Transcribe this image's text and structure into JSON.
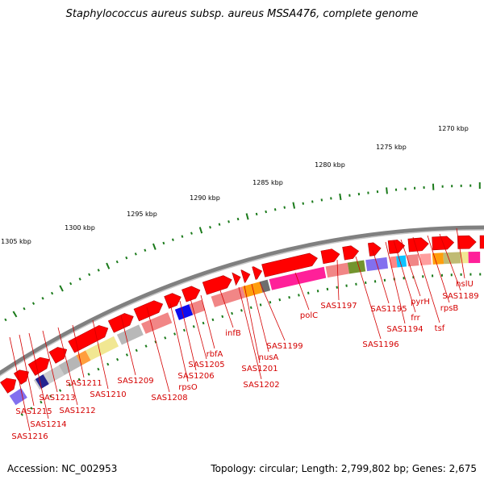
{
  "header": {
    "title": "Staphylococcus aureus subsp. aureus MSSA476, complete genome"
  },
  "footer": {
    "accession": "Accession: NC_002953",
    "summary": "Topology: circular; Length: 2,799,802 bp; Genes: 2,675"
  },
  "scale_labels": [
    "1270 kbp",
    "1275 kbp",
    "1280 kbp",
    "1285 kbp",
    "1290 kbp",
    "1295 kbp",
    "1300 kbp",
    "1305 kbp"
  ],
  "gene_labels": [
    "hslU",
    "SAS1189",
    "rpsB",
    "tsf",
    "pyrH",
    "frr",
    "SAS1194",
    "SAS1195",
    "SAS1196",
    "SAS1197",
    "polC",
    "SAS1199",
    "nusA",
    "SAS1201",
    "SAS1202",
    "infB",
    "rbfA",
    "SAS1205",
    "SAS1206",
    "rpsO",
    "SAS1208",
    "SAS1209",
    "SAS1210",
    "SAS1211",
    "SAS1212",
    "SAS1213",
    "SAS1214",
    "SAS1215",
    "SAS1216"
  ],
  "colors": {
    "label_red": "#d40000",
    "gene_arrow_red": "#ff0000",
    "backbone_grey": "#808080",
    "tick_green": "#1a7a1a"
  }
}
